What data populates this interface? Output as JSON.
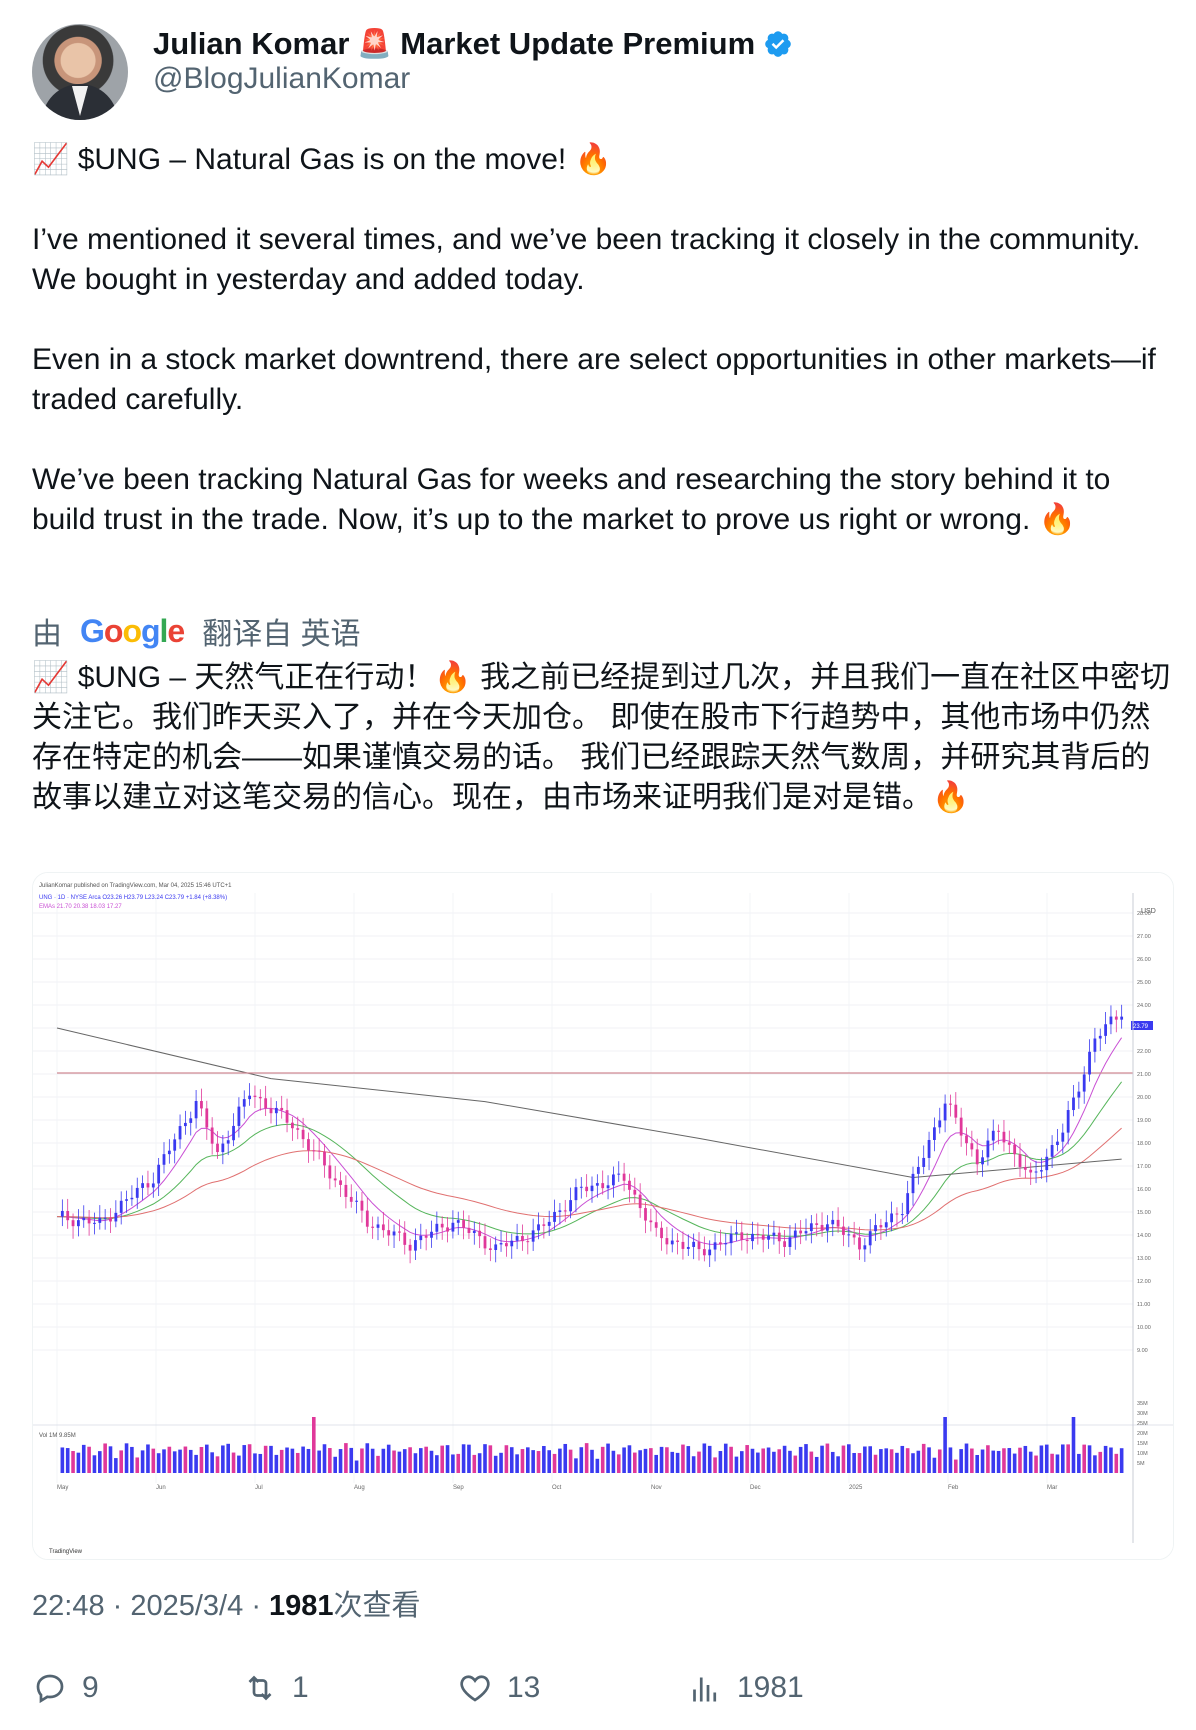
{
  "author": {
    "name": "Julian Komar",
    "name_emoji": "🚨",
    "name_suffix": "Market Update Premium",
    "handle": "@BlogJulianKomar",
    "verified_icon": "verified-badge-icon",
    "accent_color": "#1d9bf0"
  },
  "tweet": {
    "line1": "📈 $UNG – Natural Gas is on the move! 🔥",
    "para2": "I’ve mentioned it several times, and we’ve been tracking it closely in the community. We bought in yesterday and added today.",
    "para3": "Even in a stock market downtrend, there are select opportunities in other markets—if traded carefully.",
    "para4": "We’ve been tracking Natural Gas for weeks and researching the story behind it to build trust in the trade. Now, it’s up to the market to prove us right or wrong. 🔥"
  },
  "translation": {
    "prefix": "由",
    "provider": "Google",
    "suffix": "翻译自 英语",
    "text": "📈 $UNG – 天然气正在行动！🔥 我之前已经提到过几次，并且我们一直在社区中密切关注它。我们昨天买入了，并在今天加仓。 即使在股市下行趋势中，其他市场中仍然存在特定的机会——如果谨慎交易的话。 我们已经跟踪天然气数周，并研究其背后的故事以建立对这笔交易的信心。现在，由市场来证明我们是对是错。🔥"
  },
  "chart_image": {
    "published_by": "JulianKomar published on TradingView.com, Mar 04, 2025 15:46 UTC+1",
    "symbol_line": "UNG · 1D · NYSE Arca  O23.26 H23.79 L23.24 C23.79 +1.84 (+8.38%)",
    "ema_line": "EMAs 21.70 20.38 18.03 17.27",
    "currency": "USD",
    "last_price": "23.79",
    "y_ticks": [
      "28.00",
      "27.00",
      "26.00",
      "25.00",
      "24.00",
      "23.00",
      "22.00",
      "21.00",
      "20.00",
      "19.00",
      "18.00",
      "17.00",
      "16.00",
      "15.00",
      "14.00",
      "13.00",
      "12.00",
      "11.00",
      "10.00",
      "9.00"
    ],
    "volume_label": "Vol  1M  9.85M",
    "volume_ticks": [
      "35M",
      "30M",
      "25M",
      "20M",
      "15M",
      "10M",
      "5M"
    ],
    "months": [
      "May",
      "Jun",
      "Jul",
      "Aug",
      "Sep",
      "Oct",
      "Nov",
      "Dec",
      "2025",
      "Feb",
      "Mar"
    ],
    "brand": "TradingView",
    "colors": {
      "up": "#3a3af0",
      "down": "#e0389a",
      "ema_fast": "#c94fd4",
      "ema_mid": "#55b55a",
      "ema_slow": "#e07070",
      "ema_long": "#666666",
      "resistance": "#d08a94"
    }
  },
  "meta": {
    "time": "22:48",
    "date": "2025/3/4",
    "views": "1981",
    "views_suffix": "次查看"
  },
  "actions": {
    "replies": "9",
    "reposts": "1",
    "likes": "13",
    "views": "1981"
  }
}
